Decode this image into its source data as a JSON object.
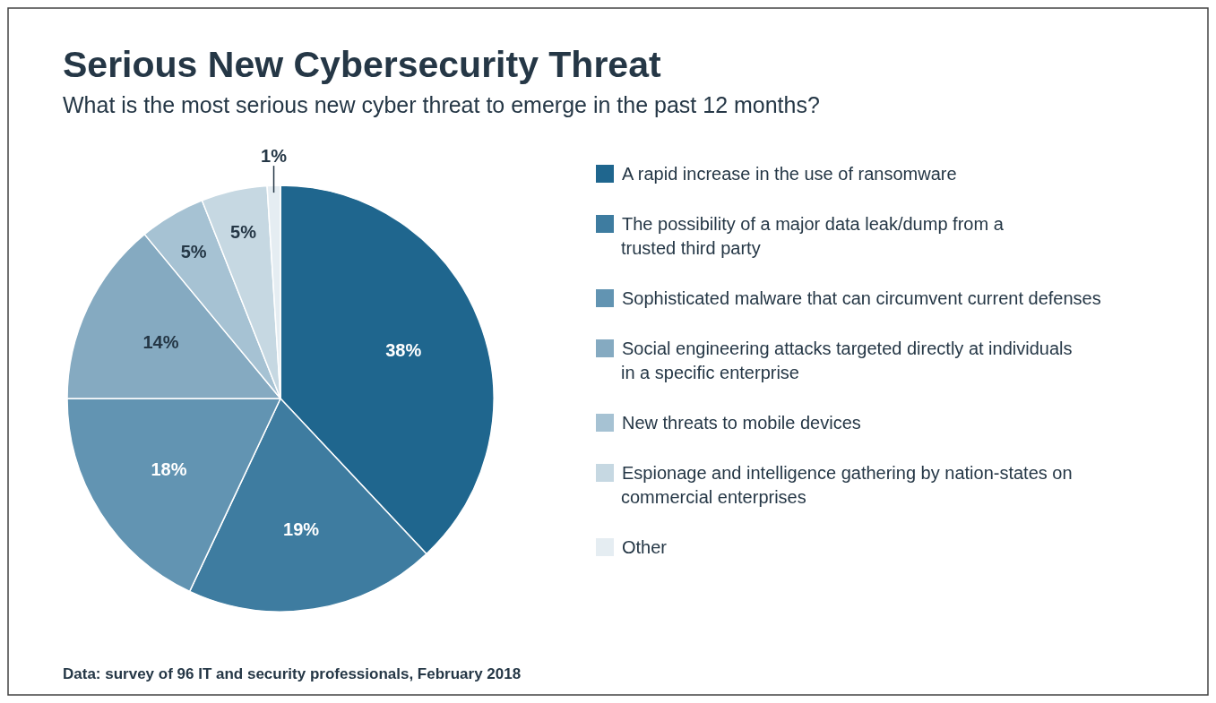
{
  "chart_data": {
    "type": "pie",
    "title": "Serious New Cybersecurity Threat",
    "subtitle": "What is the most serious new cyber threat to emerge in the past 12 months?",
    "categories": [
      "A rapid increase in the use of ransomware",
      "The possibility of a major data leak/dump from a trusted third party",
      "Sophisticated malware that can circumvent current defenses",
      "Social engineering attacks targeted directly at individuals in a specific enterprise",
      "New threats to mobile devices",
      "Espionage and intelligence gathering by nation-states on commercial enterprises",
      "Other"
    ],
    "values": [
      38,
      19,
      18,
      14,
      5,
      5,
      1
    ],
    "colors": [
      "#1f668e",
      "#3e7ca0",
      "#6294b2",
      "#85aac1",
      "#a6c2d3",
      "#c6d8e2",
      "#e5edf2"
    ],
    "value_labels": [
      "38%",
      "19%",
      "18%",
      "14%",
      "5%",
      "5%",
      "1%"
    ],
    "legend": "right",
    "annotations": [
      "Data: survey of 96 IT and security professionals, February 2018"
    ]
  }
}
